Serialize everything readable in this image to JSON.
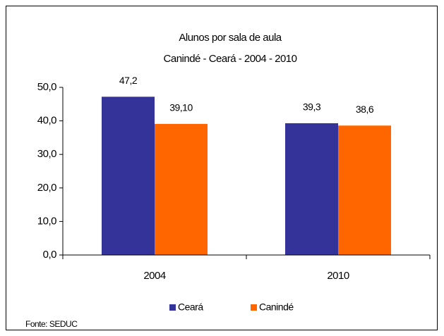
{
  "chart_data": {
    "type": "bar",
    "title": "Alunos por sala de aula",
    "subtitle": "Canindé - Ceará - 2004 - 2010",
    "categories": [
      "2004",
      "2010"
    ],
    "series": [
      {
        "name": "Ceará",
        "color": "#333399",
        "values": [
          47.2,
          39.3
        ],
        "value_labels": [
          "47,2",
          "39,3"
        ]
      },
      {
        "name": "Canindé",
        "color": "#ff6600",
        "values": [
          39.1,
          38.6
        ],
        "value_labels": [
          "39,10",
          "38,6"
        ]
      }
    ],
    "ylim": [
      0,
      50
    ],
    "yticks": [
      {
        "value": 0,
        "label": "0,0"
      },
      {
        "value": 10,
        "label": "10,0"
      },
      {
        "value": 20,
        "label": "20,0"
      },
      {
        "value": 30,
        "label": "30,0"
      },
      {
        "value": 40,
        "label": "40,0"
      },
      {
        "value": 50,
        "label": "50,0"
      }
    ],
    "source": "Fonte: SEDUC"
  }
}
